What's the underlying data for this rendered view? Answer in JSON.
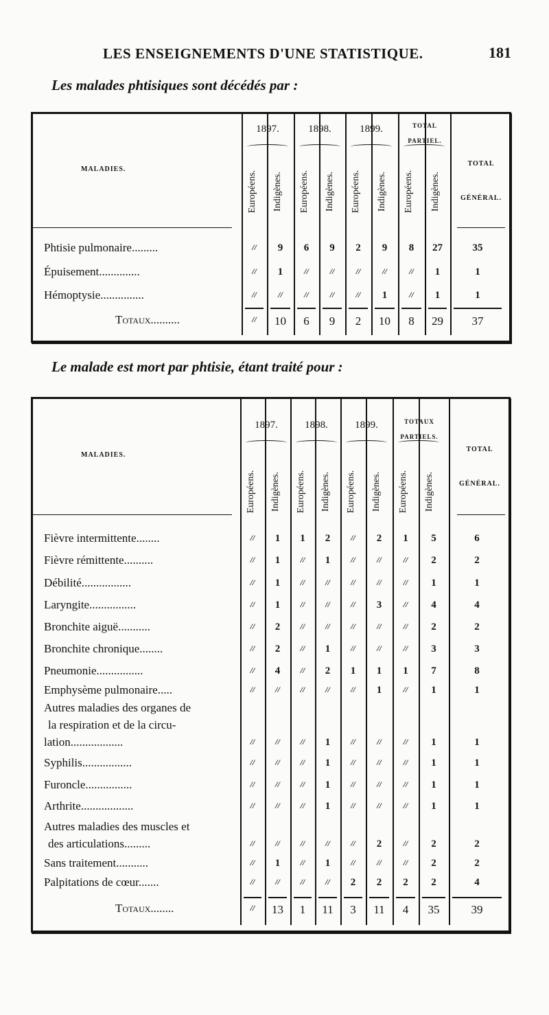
{
  "header": {
    "running_title": "LES ENSEIGNEMENTS D'UNE STATISTIQUE.",
    "page_number": "181"
  },
  "tables": [
    {
      "caption": "Les malades phtisiques sont décédés par :",
      "stub_header": "MALADIES.",
      "groups": [
        "1897.",
        "1898.",
        "1899.",
        "TOTAL PARTIEL."
      ],
      "subcolumns": [
        "Européens.",
        "Indigènes."
      ],
      "total_header": "TOTAL GÉNÉRAL.",
      "rows": [
        {
          "label": [
            "Phtisie pulmonaire........."
          ],
          "values": [
            "//",
            "9",
            "6",
            "9",
            "2",
            "9",
            "8",
            "27",
            "35"
          ]
        },
        {
          "label": [
            "Épuisement.............."
          ],
          "values": [
            "//",
            "1",
            "//",
            "//",
            "//",
            "//",
            "//",
            "1",
            "1"
          ]
        },
        {
          "label": [
            "Hémoptysie..............."
          ],
          "values": [
            "//",
            "//",
            "//",
            "//",
            "//",
            "1",
            "//",
            "1",
            "1"
          ]
        }
      ],
      "totals": {
        "label": "Totaux..........",
        "values": [
          "//",
          "10",
          "6",
          "9",
          "2",
          "10",
          "8",
          "29",
          "37"
        ]
      }
    },
    {
      "caption": "Le malade est mort par phtisie, étant traité pour :",
      "stub_header": "MALADIES.",
      "groups": [
        "1897.",
        "1898.",
        "1899.",
        "TOTAUX PARTIELS."
      ],
      "subcolumns": [
        "Européens.",
        "Indigènes."
      ],
      "total_header": "TOTAL GÉNÉRAL.",
      "rows": [
        {
          "label": [
            "Fièvre intermittente........"
          ],
          "values": [
            "//",
            "1",
            "1",
            "2",
            "//",
            "2",
            "1",
            "5",
            "6"
          ]
        },
        {
          "label": [
            "Fièvre rémittente.........."
          ],
          "values": [
            "//",
            "1",
            "//",
            "1",
            "//",
            "//",
            "//",
            "2",
            "2"
          ]
        },
        {
          "label": [
            "Débilité................."
          ],
          "values": [
            "//",
            "1",
            "//",
            "//",
            "//",
            "//",
            "//",
            "1",
            "1"
          ]
        },
        {
          "label": [
            "Laryngite................"
          ],
          "values": [
            "//",
            "1",
            "//",
            "//",
            "//",
            "3",
            "//",
            "4",
            "4"
          ]
        },
        {
          "label": [
            "Bronchite aiguë..........."
          ],
          "values": [
            "//",
            "2",
            "//",
            "//",
            "//",
            "//",
            "//",
            "2",
            "2"
          ]
        },
        {
          "label": [
            "Bronchite chronique........"
          ],
          "values": [
            "//",
            "2",
            "//",
            "1",
            "//",
            "//",
            "//",
            "3",
            "3"
          ]
        },
        {
          "label": [
            "Pneumonie................"
          ],
          "values": [
            "//",
            "4",
            "//",
            "2",
            "1",
            "1",
            "1",
            "7",
            "8"
          ]
        },
        {
          "label": [
            "Emphysème pulmonaire....."
          ],
          "values": [
            "//",
            "//",
            "//",
            "//",
            "//",
            "1",
            "//",
            "1",
            "1"
          ]
        },
        {
          "label": [
            "Autres maladies des organes de",
            "la respiration et de la circu-",
            "lation.................."
          ],
          "values": [
            "//",
            "//",
            "//",
            "1",
            "//",
            "//",
            "//",
            "1",
            "1"
          ]
        },
        {
          "label": [
            "Syphilis................."
          ],
          "values": [
            "//",
            "//",
            "//",
            "1",
            "//",
            "//",
            "//",
            "1",
            "1"
          ]
        },
        {
          "label": [
            "Furoncle................"
          ],
          "values": [
            "//",
            "//",
            "//",
            "1",
            "//",
            "//",
            "//",
            "1",
            "1"
          ]
        },
        {
          "label": [
            "Arthrite.................."
          ],
          "values": [
            "//",
            "//",
            "//",
            "1",
            "//",
            "//",
            "//",
            "1",
            "1"
          ]
        },
        {
          "label": [
            "Autres maladies des muscles et",
            "des articulations........."
          ],
          "values": [
            "//",
            "//",
            "//",
            "//",
            "//",
            "2",
            "//",
            "2",
            "2"
          ]
        },
        {
          "label": [
            "Sans traitement..........."
          ],
          "values": [
            "//",
            "1",
            "//",
            "1",
            "//",
            "//",
            "//",
            "2",
            "2"
          ]
        },
        {
          "label": [
            "Palpitations de cœur......."
          ],
          "values": [
            "//",
            "//",
            "//",
            "//",
            "2",
            "2",
            "2",
            "2",
            "4"
          ]
        }
      ],
      "totals": {
        "label": "Totaux........",
        "values": [
          "//",
          "13",
          "1",
          "11",
          "3",
          "11",
          "4",
          "35",
          "39"
        ]
      }
    }
  ]
}
